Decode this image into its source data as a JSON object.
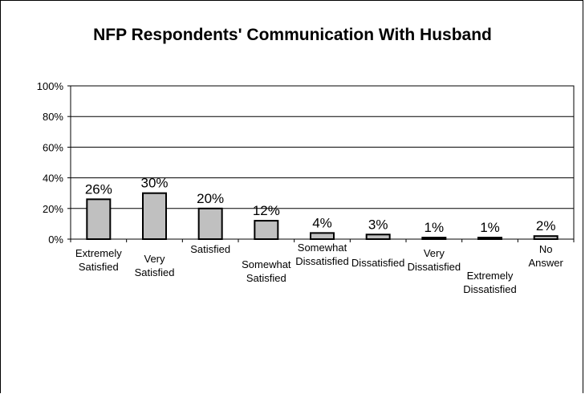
{
  "chart_data": {
    "type": "bar",
    "title": "NFP Respondents' Communication With Husband",
    "categories": [
      [
        "Extremely",
        "Satisfied"
      ],
      [
        "Very",
        "Satisfied"
      ],
      [
        "Satisfied"
      ],
      [
        "Somewhat",
        "Satisfied"
      ],
      [
        "Somewhat",
        "Dissatisfied"
      ],
      [
        "Dissatisfied"
      ],
      [
        "Very",
        "Dissatisfied"
      ],
      [
        "Extremely",
        "Dissatisfied"
      ],
      [
        "No",
        "Answer"
      ]
    ],
    "values": [
      26,
      30,
      20,
      12,
      4,
      3,
      1,
      1,
      2
    ],
    "data_labels": [
      "26%",
      "30%",
      "20%",
      "12%",
      "4%",
      "3%",
      "1%",
      "1%",
      "2%"
    ],
    "yticks": [
      "0%",
      "20%",
      "40%",
      "60%",
      "80%",
      "100%"
    ],
    "ylim": [
      0,
      100
    ],
    "grid": true,
    "bar_color": "#c0c0c0"
  }
}
